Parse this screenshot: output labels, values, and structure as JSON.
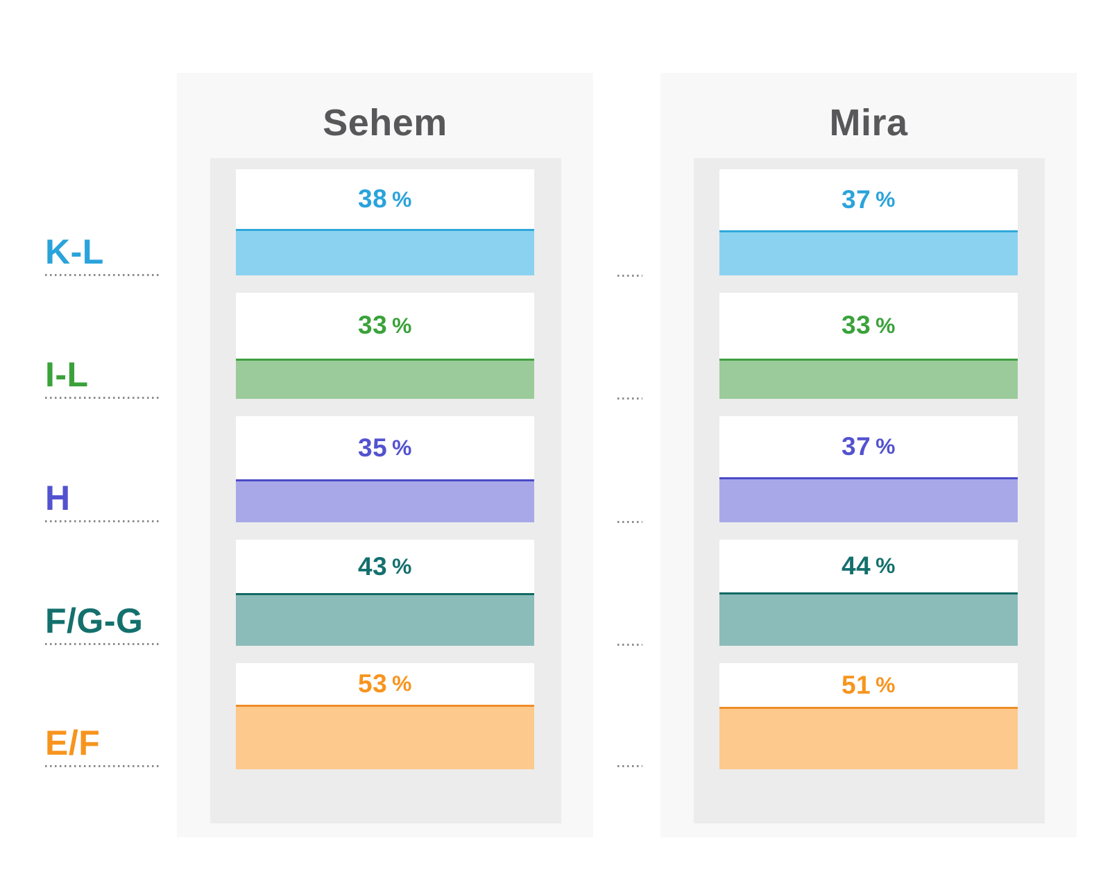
{
  "chart_data": {
    "type": "bar",
    "title": "",
    "orientation": "two-panel comparison, percentage fill cards",
    "percent_sign": "%",
    "columns": [
      {
        "name": "Sehem"
      },
      {
        "name": "Mira"
      }
    ],
    "categories": [
      "K-L",
      "I-L",
      "H",
      "F/G-G",
      "E/F"
    ],
    "rows": [
      {
        "label": "K-L",
        "colors": {
          "text": "#2aa3db",
          "fill": "#8bd2f0",
          "border": "#2ea7db"
        }
      },
      {
        "label": "I-L",
        "colors": {
          "text": "#3aa23a",
          "fill": "#9bcb9a",
          "border": "#3f9f42"
        }
      },
      {
        "label": "H",
        "colors": {
          "text": "#5352cf",
          "fill": "#a8a8e9",
          "border": "#4b4ac6"
        }
      },
      {
        "label": "F/G-G",
        "colors": {
          "text": "#14706d",
          "fill": "#8bbcba",
          "border": "#116864"
        }
      },
      {
        "label": "E/F",
        "colors": {
          "text": "#f7941e",
          "fill": "#fdc98d",
          "border": "#ee8d28"
        }
      }
    ],
    "series": [
      {
        "name": "Sehem",
        "values": [
          38,
          33,
          35,
          43,
          53
        ]
      },
      {
        "name": "Mira",
        "values": [
          37,
          33,
          37,
          44,
          51
        ]
      }
    ],
    "value_range": [
      0,
      100
    ],
    "style_colors": {
      "panel_bg": "#f8f8f8",
      "inner_bg": "#ececec",
      "card_bg": "#ffffff",
      "title_color": "#58585a",
      "dot_color": "#8b8b8b",
      "page_bg": "#ffffff"
    }
  }
}
